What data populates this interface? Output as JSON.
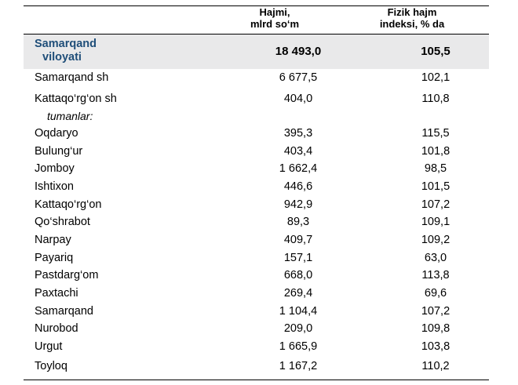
{
  "header": {
    "col1_line1": "Hajmi,",
    "col1_line2": "mlrd so‘m",
    "col2_line1": "Fizik hajm",
    "col2_line2": "indeksi, % da"
  },
  "region": {
    "name_line1": "Samarqand",
    "name_line2": "viloyati",
    "volume": "18 493,0",
    "index": "105,5"
  },
  "subheading": "tumanlar:",
  "rows": [
    {
      "name": "Samarqand sh",
      "volume": "6 677,5",
      "index": "102,1"
    },
    {
      "name": "Kattaqo‘rg‘on sh",
      "volume": "404,0",
      "index": "110,8"
    },
    {
      "name": "Oqdaryo",
      "volume": "395,3",
      "index": "115,5"
    },
    {
      "name": "Bulung‘ur",
      "volume": "403,4",
      "index": "101,8"
    },
    {
      "name": "Jomboy",
      "volume": "1 662,4",
      "index": "98,5"
    },
    {
      "name": "Ishtixon",
      "volume": "446,6",
      "index": "101,5"
    },
    {
      "name": "Kattaqo‘rg‘on",
      "volume": "942,9",
      "index": "107,2"
    },
    {
      "name": "Qo‘shrabot",
      "volume": "89,3",
      "index": "109,1"
    },
    {
      "name": "Narpay",
      "volume": "409,7",
      "index": "109,2"
    },
    {
      "name": "Payariq",
      "volume": "157,1",
      "index": "63,0"
    },
    {
      "name": "Pastdarg‘om",
      "volume": "668,0",
      "index": "113,8"
    },
    {
      "name": "Paxtachi",
      "volume": "269,4",
      "index": "69,6"
    },
    {
      "name": "Samarqand",
      "volume": "1 104,4",
      "index": "107,2"
    },
    {
      "name": "Nurobod",
      "volume": "209,0",
      "index": "109,8"
    },
    {
      "name": "Urgut",
      "volume": "1 665,9",
      "index": "103,8"
    },
    {
      "name": "Toyloq",
      "volume": "1 167,2",
      "index": "110,2"
    }
  ]
}
